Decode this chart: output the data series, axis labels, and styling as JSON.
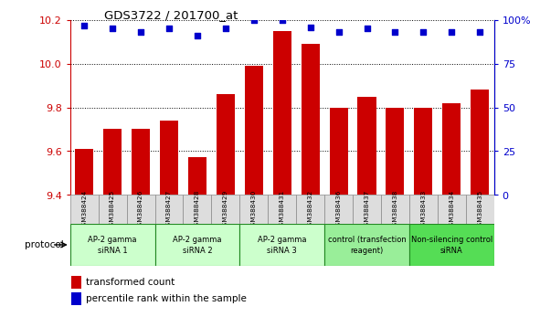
{
  "title": "GDS3722 / 201700_at",
  "samples": [
    "GSM388424",
    "GSM388425",
    "GSM388426",
    "GSM388427",
    "GSM388428",
    "GSM388429",
    "GSM388430",
    "GSM388431",
    "GSM388432",
    "GSM388436",
    "GSM388437",
    "GSM388438",
    "GSM388433",
    "GSM388434",
    "GSM388435"
  ],
  "bar_values": [
    9.61,
    9.7,
    9.7,
    9.74,
    9.57,
    9.86,
    9.99,
    10.15,
    10.09,
    9.8,
    9.85,
    9.8,
    9.8,
    9.82,
    9.88
  ],
  "dot_values": [
    97,
    95,
    93,
    95,
    91,
    95,
    100,
    100,
    96,
    93,
    95,
    93,
    93,
    93,
    93
  ],
  "bar_color": "#cc0000",
  "dot_color": "#0000cc",
  "ylim_left": [
    9.4,
    10.2
  ],
  "ylim_right": [
    0,
    100
  ],
  "yticks_left": [
    9.4,
    9.6,
    9.8,
    10.0,
    10.2
  ],
  "yticks_right": [
    0,
    25,
    50,
    75,
    100
  ],
  "groups": [
    {
      "label": "AP-2 gamma\nsiRNA 1",
      "start": 0,
      "end": 3,
      "color": "#ccffcc"
    },
    {
      "label": "AP-2 gamma\nsiRNA 2",
      "start": 3,
      "end": 6,
      "color": "#ccffcc"
    },
    {
      "label": "AP-2 gamma\nsiRNA 3",
      "start": 6,
      "end": 9,
      "color": "#ccffcc"
    },
    {
      "label": "control (transfection\nreagent)",
      "start": 9,
      "end": 12,
      "color": "#99ee99"
    },
    {
      "label": "Non-silencing control\nsiRNA",
      "start": 12,
      "end": 15,
      "color": "#55dd55"
    }
  ],
  "protocol_label": "protocol",
  "legend_bar_label": "transformed count",
  "legend_dot_label": "percentile rank within the sample",
  "tick_color_left": "#cc0000",
  "tick_color_right": "#0000cc",
  "bg_color": "#ffffff",
  "grid_color": "#000000",
  "group_colors": [
    "#ccffcc",
    "#ccffcc",
    "#ccffcc",
    "#99ee99",
    "#55dd55"
  ],
  "group_border_color": "#228822",
  "sample_box_color": "#dddddd",
  "sample_box_edge": "#888888"
}
